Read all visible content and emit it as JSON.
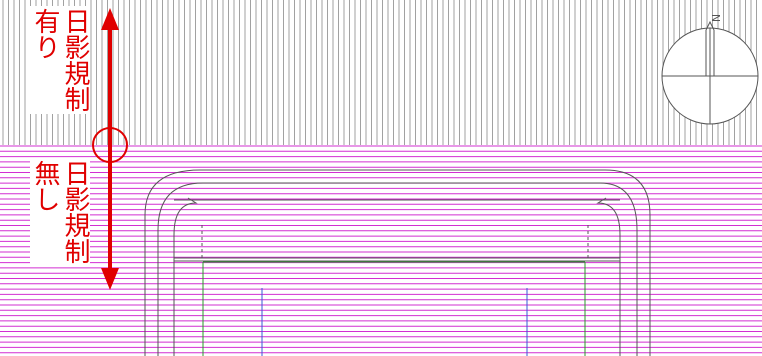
{
  "labels": {
    "with_restriction": {
      "line1": "日影規制",
      "line2": "有り"
    },
    "without_restriction": {
      "line1": "日影規制",
      "line2": "無し"
    }
  },
  "compass": {
    "north_label": "N"
  },
  "colors": {
    "restricted_hatch": "#8a8a8a",
    "unrestricted_hatch": "#d22fd2",
    "arrow": "#e00000",
    "outline": "#555555",
    "road_green": "#2a9a2a",
    "road_blue": "#3a5ad8"
  }
}
